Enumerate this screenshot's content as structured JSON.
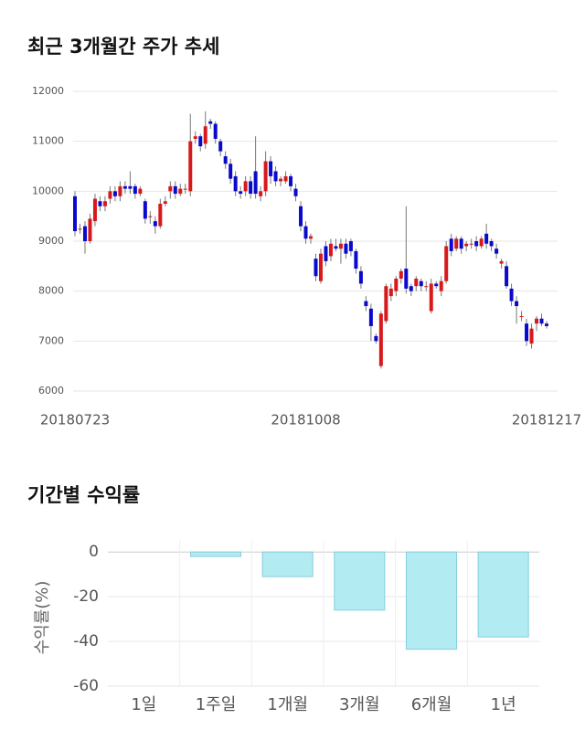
{
  "chart_data": [
    {
      "type": "candlestick",
      "title": "최근 3개월간 주가 추세",
      "categories": [
        "20180723",
        null,
        null,
        null,
        null,
        null,
        null,
        null,
        null,
        null,
        null,
        null,
        null,
        null,
        null,
        null,
        null,
        null,
        null,
        null,
        null,
        null,
        null,
        null,
        null,
        null,
        null,
        null,
        null,
        null,
        null,
        null,
        null,
        null,
        null,
        null,
        null,
        null,
        null,
        null,
        null,
        null,
        null,
        null,
        null,
        null,
        "20181008",
        null,
        null,
        null,
        null,
        null,
        null,
        null,
        null,
        null,
        null,
        null,
        null,
        null,
        null,
        null,
        null,
        null,
        null,
        null,
        null,
        null,
        null,
        null,
        null,
        null,
        null,
        null,
        null,
        null,
        null,
        null,
        null,
        null,
        null,
        null,
        null,
        null,
        null,
        null,
        null,
        null,
        null,
        null,
        null,
        null,
        null,
        null,
        "20181217"
      ],
      "open": [
        9900,
        9250,
        9300,
        9000,
        9400,
        9800,
        9700,
        9850,
        10000,
        9900,
        10100,
        10100,
        10100,
        9950,
        9800,
        9500,
        9400,
        9300,
        9750,
        10000,
        10100,
        9950,
        10050,
        10000,
        11050,
        11100,
        10950,
        11400,
        11350,
        11000,
        10700,
        10550,
        10300,
        10000,
        10000,
        10200,
        10400,
        9900,
        10000,
        10600,
        10400,
        10200,
        10200,
        10300,
        10050,
        9700,
        9300,
        9050,
        8650,
        8200,
        8900,
        8700,
        8900,
        8850,
        8950,
        9000,
        8800,
        8400,
        7800,
        7650,
        7100,
        6500,
        7400,
        7900,
        8000,
        8250,
        8450,
        8100,
        8100,
        8200,
        8100,
        7600,
        8150,
        8000,
        8200,
        9050,
        8850,
        9050,
        8900,
        8950,
        9000,
        8900,
        9150,
        9000,
        8850,
        8550,
        8500,
        8050,
        7800,
        7500,
        7350,
        6950,
        7350,
        7450,
        7350
      ],
      "high": [
        10000,
        9350,
        9400,
        9550,
        9950,
        9900,
        9900,
        10100,
        10100,
        10200,
        10200,
        10400,
        10150,
        10100,
        9850,
        9600,
        9500,
        9850,
        9900,
        10200,
        10200,
        10150,
        10150,
        11550,
        11200,
        11150,
        11600,
        11450,
        11400,
        11050,
        10800,
        10650,
        10400,
        10100,
        10300,
        10300,
        11100,
        10100,
        10800,
        10700,
        10500,
        10300,
        10400,
        10350,
        10150,
        9800,
        9400,
        9150,
        8750,
        8850,
        9000,
        9050,
        9050,
        9050,
        9050,
        9050,
        8850,
        8500,
        7900,
        7750,
        7150,
        7600,
        8150,
        8150,
        8300,
        8450,
        9700,
        8150,
        8300,
        8250,
        8200,
        8250,
        8200,
        8300,
        9000,
        9150,
        9100,
        9100,
        9000,
        9050,
        9100,
        9100,
        9350,
        9050,
        8950,
        8650,
        8600,
        8150,
        7900,
        7600,
        7450,
        7350,
        7500,
        7550,
        7400
      ],
      "low": [
        9100,
        9150,
        8750,
        8950,
        9300,
        9600,
        9600,
        9750,
        9800,
        9800,
        9950,
        9950,
        9850,
        9900,
        9350,
        9350,
        9150,
        9250,
        9700,
        9850,
        9850,
        9900,
        9950,
        9900,
        10950,
        10800,
        10850,
        11250,
        10950,
        10700,
        10450,
        10150,
        9900,
        9850,
        9900,
        9850,
        9850,
        9800,
        9900,
        10150,
        10100,
        10100,
        10150,
        10000,
        9800,
        9200,
        8950,
        8950,
        8200,
        8150,
        8500,
        8600,
        8800,
        8550,
        8650,
        8700,
        8350,
        8050,
        7600,
        7000,
        6950,
        6450,
        7350,
        7800,
        7900,
        8150,
        7950,
        7900,
        8000,
        8000,
        8000,
        7550,
        8050,
        7900,
        8150,
        8700,
        8800,
        8750,
        8800,
        8850,
        8800,
        8850,
        8850,
        8800,
        8650,
        8450,
        8050,
        7700,
        7350,
        7400,
        6900,
        6850,
        7200,
        7300,
        7250
      ],
      "close": [
        9200,
        9250,
        9000,
        9450,
        9850,
        9700,
        9800,
        10000,
        9900,
        10100,
        10050,
        10050,
        9950,
        10050,
        9450,
        9500,
        9300,
        9750,
        9800,
        10100,
        9950,
        10050,
        10050,
        11000,
        11100,
        10900,
        11300,
        11350,
        11050,
        10800,
        10550,
        10250,
        10000,
        9950,
        10200,
        9950,
        9950,
        10000,
        10600,
        10300,
        10200,
        10250,
        10300,
        10100,
        9900,
        9300,
        9050,
        9100,
        8300,
        8750,
        8600,
        8950,
        8850,
        8950,
        8750,
        8800,
        8450,
        8150,
        7700,
        7300,
        7000,
        7550,
        8100,
        8050,
        8250,
        8400,
        8050,
        8000,
        8250,
        8100,
        8100,
        8150,
        8100,
        8200,
        8900,
        8800,
        9050,
        8850,
        8950,
        8950,
        8900,
        9050,
        8950,
        8900,
        8750,
        8600,
        8100,
        7800,
        7700,
        7500,
        7000,
        7250,
        7450,
        7350,
        7300
      ],
      "up_color": "#d7191c",
      "down_color": "#0a0acc",
      "ylim": [
        6000,
        12000
      ],
      "yticks": [
        6000,
        7000,
        8000,
        9000,
        10000,
        11000,
        12000
      ],
      "grid": true
    },
    {
      "type": "bar",
      "title": "기간별 수익률",
      "y_label": "수익률(%)",
      "categories": [
        "1일",
        "1주일",
        "1개월",
        "3개월",
        "6개월",
        "1년"
      ],
      "values": [
        0,
        -2,
        -11,
        -26,
        -43.5,
        -38
      ],
      "color": "#b3ebf3",
      "edge_color": "#86cfdc",
      "ylim": [
        -60,
        5
      ],
      "yticks": [
        0,
        -20,
        -40,
        -60
      ],
      "grid": true
    }
  ]
}
